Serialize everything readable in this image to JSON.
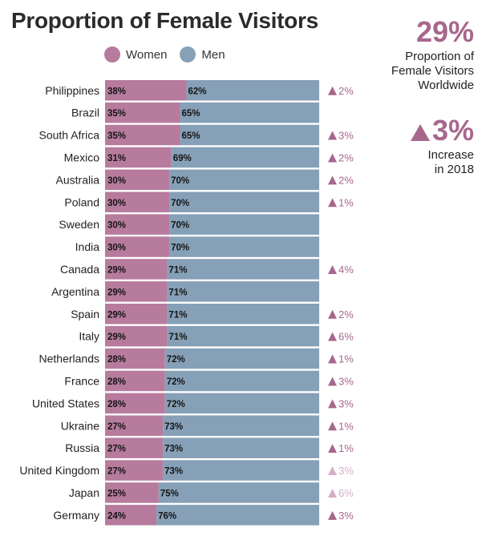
{
  "title": "Proportion of Female Visitors",
  "legend": {
    "women": "Women",
    "men": "Men"
  },
  "colors": {
    "women": "#b77b9e",
    "men": "#86a0b7",
    "accent": "#a7678d",
    "accent_light": "#d5afc7"
  },
  "kpi1": {
    "value": "29%",
    "line1": "Proportion of",
    "line2": "Female Visitors",
    "line3": "Worldwide"
  },
  "kpi2": {
    "value": "3%",
    "line1": "Increase",
    "line2": "in 2018"
  },
  "chart_data": {
    "type": "bar",
    "stacked": true,
    "orientation": "horizontal",
    "title": "Proportion of Female Visitors",
    "xlim": [
      0,
      100
    ],
    "categories": [
      "Philippines",
      "Brazil",
      "South Africa",
      "Mexico",
      "Australia",
      "Poland",
      "Sweden",
      "India",
      "Canada",
      "Argentina",
      "Spain",
      "Italy",
      "Netherlands",
      "France",
      "United States",
      "Ukraine",
      "Russia",
      "United Kingdom",
      "Japan",
      "Germany"
    ],
    "series": [
      {
        "name": "Women",
        "values": [
          38,
          35,
          35,
          31,
          30,
          30,
          30,
          30,
          29,
          29,
          29,
          29,
          28,
          28,
          28,
          27,
          27,
          27,
          25,
          24
        ]
      },
      {
        "name": "Men",
        "values": [
          62,
          65,
          65,
          69,
          70,
          70,
          70,
          70,
          71,
          71,
          71,
          71,
          72,
          72,
          72,
          73,
          73,
          73,
          75,
          76
        ]
      }
    ],
    "change": [
      "2%",
      "",
      "3%",
      "2%",
      "2%",
      "1%",
      "",
      "",
      "4%",
      "",
      "2%",
      "6%",
      "1%",
      "3%",
      "3%",
      "1%",
      "1%",
      "3%",
      "6%",
      "3%"
    ],
    "change_faded": [
      false,
      false,
      false,
      false,
      false,
      false,
      false,
      false,
      false,
      false,
      false,
      false,
      false,
      false,
      false,
      false,
      false,
      true,
      true,
      false
    ],
    "legend_position": "top"
  }
}
